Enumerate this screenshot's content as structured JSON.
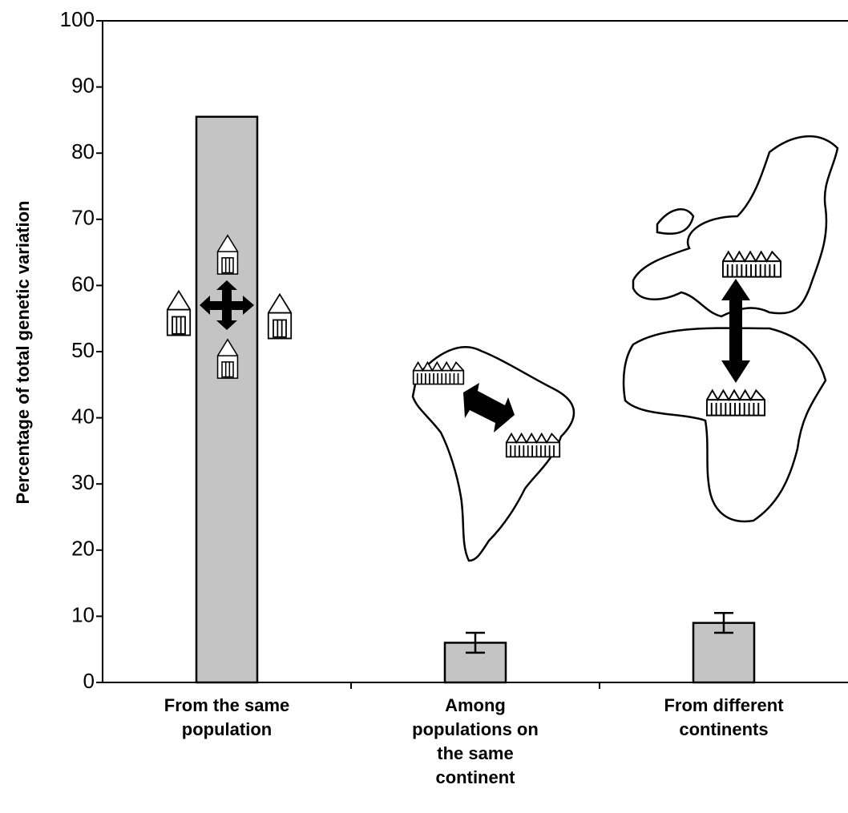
{
  "chart_data": {
    "type": "bar",
    "ylabel": "Percentage of total genetic variation",
    "categories": [
      "From the same\npopulation",
      "Among\npopulations on\nthe same\ncontinent",
      "From different\ncontinents"
    ],
    "values": [
      85.5,
      6,
      9
    ],
    "errors": [
      null,
      1.5,
      1.5
    ],
    "color": "#c4c4c4",
    "ylim": [
      0,
      100
    ],
    "yticks": [
      0,
      10,
      20,
      30,
      40,
      50,
      60,
      70,
      80,
      90,
      100
    ],
    "grid": false
  }
}
